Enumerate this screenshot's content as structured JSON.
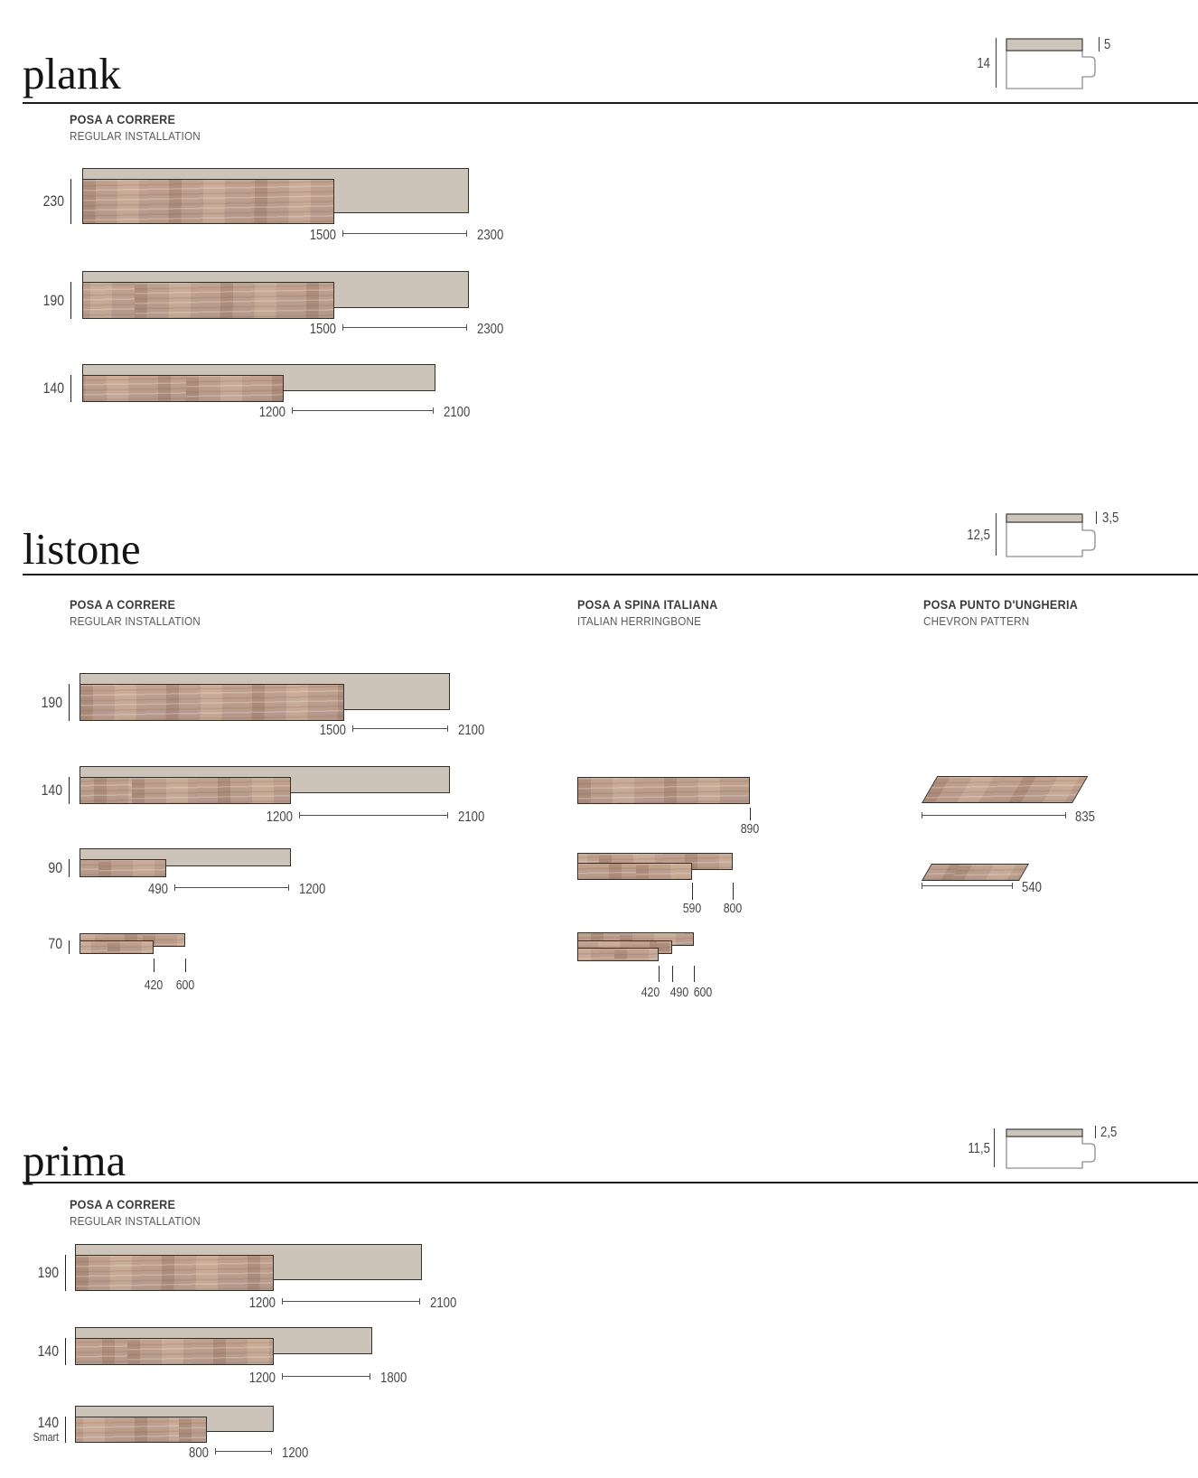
{
  "sections": [
    {
      "id": "plank",
      "title": "plank",
      "profile": {
        "total": "14",
        "layer": "5"
      },
      "columns": [
        {
          "heading": "POSA A CORRERE",
          "subheading": "REGULAR INSTALLATION",
          "rows": [
            {
              "kind": "overlap",
              "width": "230",
              "min": 1500,
              "max": 2300
            },
            {
              "kind": "overlap",
              "width": "190",
              "min": 1500,
              "max": 2300
            },
            {
              "kind": "overlap",
              "width": "140",
              "min": 1200,
              "max": 2100
            }
          ]
        }
      ]
    },
    {
      "id": "listone",
      "title": "listone",
      "profile": {
        "total": "12,5",
        "layer": "3,5"
      },
      "columns": [
        {
          "heading": "POSA A CORRERE",
          "subheading": "REGULAR INSTALLATION",
          "rows": [
            {
              "kind": "overlap",
              "width": "190",
              "min": 1500,
              "max": 2100
            },
            {
              "kind": "overlap",
              "width": "140",
              "min": 1200,
              "max": 2100
            },
            {
              "kind": "overlap",
              "width": "90",
              "min": 490,
              "max": 1200
            },
            {
              "kind": "stack",
              "width": "70",
              "bars": [
                600,
                420
              ]
            }
          ]
        },
        {
          "heading": "POSA A SPINA ITALIANA",
          "subheading": "ITALIAN HERRINGBONE",
          "rows": [
            {
              "kind": "stack",
              "bars": [
                890
              ]
            },
            {
              "kind": "stack",
              "bars": [
                800,
                590
              ]
            },
            {
              "kind": "stack",
              "bars": [
                600,
                490,
                420
              ]
            }
          ]
        },
        {
          "heading": "POSA PUNTO D'UNGHERIA",
          "subheading": "CHEVRON PATTERN",
          "rows": [
            {
              "kind": "chevron",
              "length": 835
            },
            {
              "kind": "chevron",
              "length": 540
            }
          ]
        }
      ]
    },
    {
      "id": "prima",
      "title": "prima",
      "profile": {
        "total": "11,5",
        "layer": "2,5"
      },
      "columns": [
        {
          "heading": "POSA A CORRERE",
          "subheading": "REGULAR INSTALLATION",
          "rows": [
            {
              "kind": "overlap",
              "width": "190",
              "min": 1200,
              "max": 2100
            },
            {
              "kind": "overlap",
              "width": "140",
              "min": 1200,
              "max": 1800
            },
            {
              "kind": "overlap",
              "width": "140",
              "width2": "Smart",
              "min": 800,
              "max": 1200
            }
          ]
        }
      ]
    }
  ],
  "colors": {
    "wood": "#b99c8b",
    "blank": "#ccc3b9",
    "outline": "#33302b",
    "text": "#454545"
  }
}
